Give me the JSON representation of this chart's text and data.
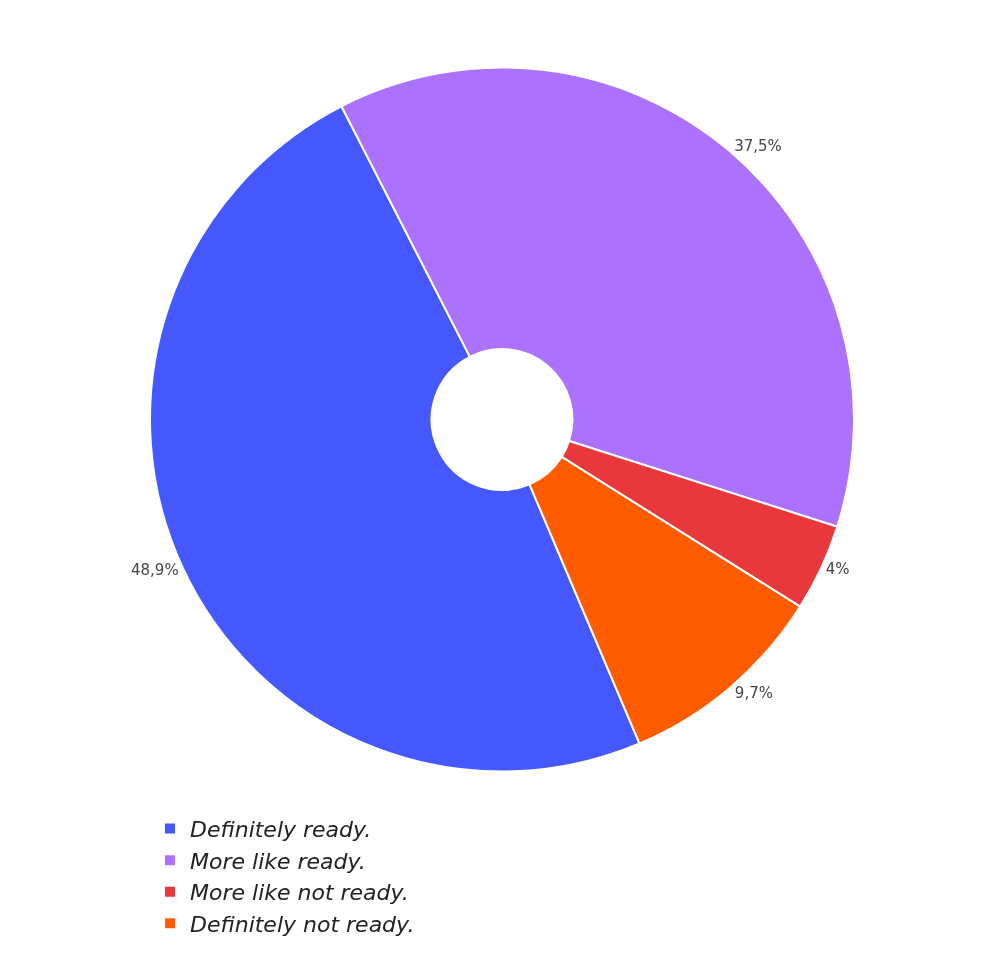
{
  "chart_data": {
    "type": "donut",
    "categories": [
      "Definitely ready.",
      "More like ready.",
      "More like not ready.",
      "Definitely not ready."
    ],
    "values": [
      48.9,
      37.5,
      4,
      9.7
    ],
    "colors": [
      "#4558fe",
      "#ac72fe",
      "#e8383b",
      "#ff5b00"
    ],
    "value_labels": [
      "48,9%",
      "37,5%",
      "4%",
      "9,7%"
    ],
    "legend": "bottom"
  }
}
